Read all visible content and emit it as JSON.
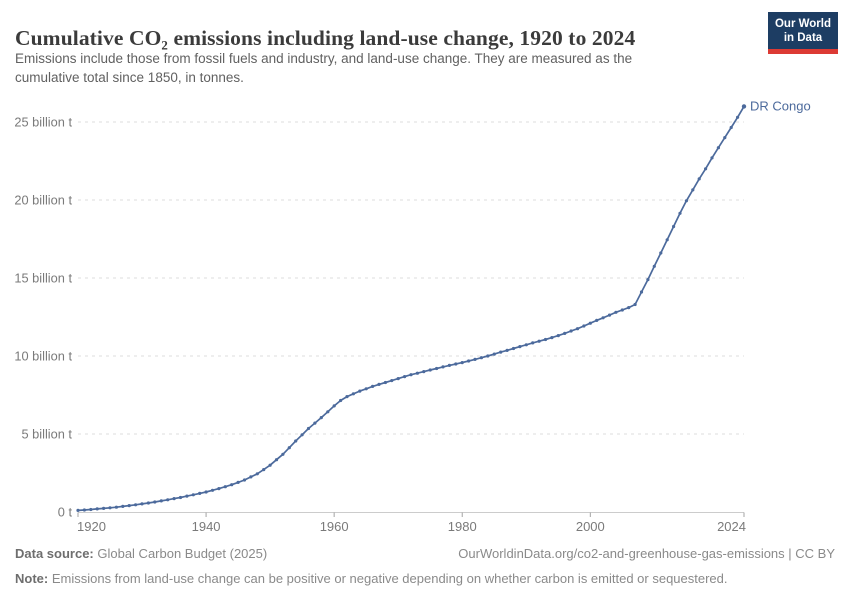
{
  "header": {
    "title": "Cumulative CO₂ emissions including land-use change, 1920 to 2024",
    "subtitle_line1": "Emissions include those from fossil fuels and industry, and land-use change. They are measured as the",
    "subtitle_line2": "cumulative total since 1850, in tonnes.",
    "logo": {
      "line1": "Our World",
      "line2": "in Data"
    }
  },
  "chart_data": {
    "type": "line",
    "title": "Cumulative CO₂ emissions including land-use change, 1920 to 2024",
    "unit": "billion tonnes CO₂",
    "xlim": [
      1920,
      2024
    ],
    "ylim": [
      0,
      26
    ],
    "grid": "horizontal dashed",
    "legend_position": "end-of-line label",
    "end_label": "DR Congo",
    "x_ticks": [
      {
        "value": 1920,
        "label": "1920"
      },
      {
        "value": 1940,
        "label": "1940"
      },
      {
        "value": 1960,
        "label": "1960"
      },
      {
        "value": 1980,
        "label": "1980"
      },
      {
        "value": 2000,
        "label": "2000"
      },
      {
        "value": 2024,
        "label": "2024"
      }
    ],
    "y_ticks": [
      {
        "value": 0,
        "label": "0 t"
      },
      {
        "value": 5,
        "label": "5 billion t"
      },
      {
        "value": 10,
        "label": "10 billion t"
      },
      {
        "value": 15,
        "label": "15 billion t"
      },
      {
        "value": 20,
        "label": "20 billion t"
      },
      {
        "value": 25,
        "label": "25 billion t"
      }
    ],
    "series": [
      {
        "name": "DR Congo",
        "color": "#4c6a9c",
        "x": [
          1920,
          1921,
          1922,
          1923,
          1924,
          1925,
          1926,
          1927,
          1928,
          1929,
          1930,
          1931,
          1932,
          1933,
          1934,
          1935,
          1936,
          1937,
          1938,
          1939,
          1940,
          1941,
          1942,
          1943,
          1944,
          1945,
          1946,
          1947,
          1948,
          1949,
          1950,
          1951,
          1952,
          1953,
          1954,
          1955,
          1956,
          1957,
          1958,
          1959,
          1960,
          1961,
          1962,
          1963,
          1964,
          1965,
          1966,
          1967,
          1968,
          1969,
          1970,
          1971,
          1972,
          1973,
          1974,
          1975,
          1976,
          1977,
          1978,
          1979,
          1980,
          1981,
          1982,
          1983,
          1984,
          1985,
          1986,
          1987,
          1988,
          1989,
          1990,
          1991,
          1992,
          1993,
          1994,
          1995,
          1996,
          1997,
          1998,
          1999,
          2000,
          2001,
          2002,
          2003,
          2004,
          2005,
          2006,
          2007,
          2008,
          2009,
          2010,
          2011,
          2012,
          2013,
          2014,
          2015,
          2016,
          2017,
          2018,
          2019,
          2020,
          2021,
          2022,
          2023,
          2024
        ],
        "values": [
          0.1,
          0.13,
          0.16,
          0.2,
          0.23,
          0.27,
          0.31,
          0.36,
          0.41,
          0.46,
          0.52,
          0.58,
          0.64,
          0.71,
          0.78,
          0.86,
          0.93,
          1.02,
          1.1,
          1.19,
          1.28,
          1.39,
          1.5,
          1.62,
          1.75,
          1.9,
          2.05,
          2.25,
          2.45,
          2.72,
          3.0,
          3.35,
          3.7,
          4.12,
          4.55,
          4.95,
          5.35,
          5.7,
          6.05,
          6.42,
          6.8,
          7.15,
          7.4,
          7.58,
          7.75,
          7.9,
          8.05,
          8.18,
          8.3,
          8.42,
          8.55,
          8.68,
          8.8,
          8.9,
          9.0,
          9.1,
          9.2,
          9.3,
          9.4,
          9.49,
          9.58,
          9.68,
          9.78,
          9.89,
          10.0,
          10.12,
          10.25,
          10.36,
          10.48,
          10.6,
          10.72,
          10.84,
          10.95,
          11.06,
          11.18,
          11.31,
          11.45,
          11.6,
          11.75,
          11.92,
          12.1,
          12.28,
          12.45,
          12.62,
          12.8,
          12.95,
          13.1,
          13.3,
          14.1,
          14.9,
          15.75,
          16.6,
          17.45,
          18.3,
          19.15,
          19.95,
          20.65,
          21.35,
          22.0,
          22.7,
          23.35,
          24.0,
          24.65,
          25.3,
          26.0
        ]
      }
    ]
  },
  "footer": {
    "source_prefix": "Data source:",
    "source_text": " Global Carbon Budget (2025)",
    "link_text": "OurWorldinData.org/co2-and-greenhouse-gas-emissions | CC BY",
    "note_prefix": "Note:",
    "note_text": " Emissions from land-use change can be positive or negative depending on whether carbon is emitted or sequestered."
  },
  "colors": {
    "line": "#4c6a9c",
    "grid": "#dcdcdc",
    "axis": "#cccccc",
    "tick": "#a3a3a3",
    "axis_label": "#7a7a7a",
    "logo_bg": "#1d3d63",
    "logo_bar": "#dc3a34"
  }
}
